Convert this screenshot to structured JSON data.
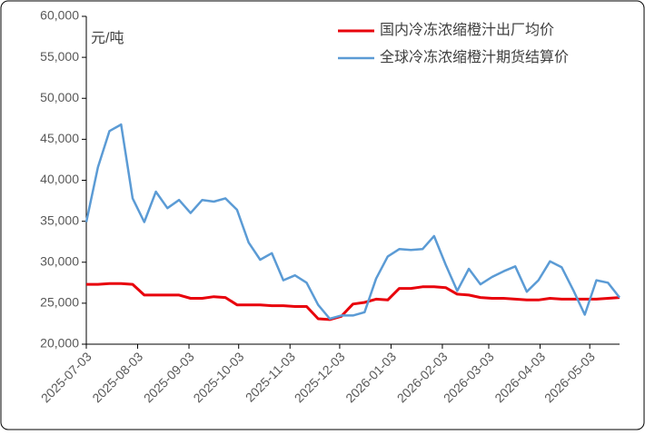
{
  "chart_data": {
    "type": "line",
    "y_label": "元/吨",
    "x": [
      "2025-07-03",
      "2025-07-10",
      "2025-07-17",
      "2025-07-24",
      "2025-07-31",
      "2025-08-07",
      "2025-08-14",
      "2025-08-21",
      "2025-08-28",
      "2025-09-04",
      "2025-09-11",
      "2025-09-18",
      "2025-09-25",
      "2025-10-02",
      "2025-10-09",
      "2025-10-16",
      "2025-10-23",
      "2025-10-30",
      "2025-11-06",
      "2025-11-13",
      "2025-11-20",
      "2025-11-27",
      "2025-12-04",
      "2025-12-11",
      "2025-12-18",
      "2025-12-25",
      "2026-01-01",
      "2026-01-08",
      "2026-01-15",
      "2026-01-22",
      "2026-01-29",
      "2026-02-05",
      "2026-02-12",
      "2026-02-19",
      "2026-02-26",
      "2026-03-05",
      "2026-03-12",
      "2026-03-19",
      "2026-03-26",
      "2026-04-02",
      "2026-04-09",
      "2026-04-16",
      "2026-04-23",
      "2026-04-30",
      "2026-05-07",
      "2026-05-14",
      "2026-05-21"
    ],
    "series": [
      {
        "name": "国内冷冻浓缩橙汁出厂均价",
        "color": "#e8000b",
        "width": 3,
        "values": [
          27300,
          27300,
          27400,
          27400,
          27300,
          26000,
          26000,
          26000,
          26000,
          25600,
          25600,
          25800,
          25700,
          24800,
          24800,
          24800,
          24700,
          24700,
          24600,
          24600,
          23100,
          23000,
          23400,
          24900,
          25100,
          25500,
          25400,
          26800,
          26800,
          27000,
          27000,
          26900,
          26100,
          26000,
          25700,
          25600,
          25600,
          25500,
          25400,
          25400,
          25600,
          25500,
          25500,
          25500,
          25500,
          25600,
          25700
        ]
      },
      {
        "name": "全球冷冻浓缩橙汁期货结算价",
        "color": "#5b9bd5",
        "width": 2.5,
        "values": [
          34900,
          41600,
          46000,
          46800,
          37800,
          34900,
          38600,
          36600,
          37600,
          36000,
          37600,
          37400,
          37800,
          36400,
          32400,
          30300,
          31100,
          27800,
          28400,
          27500,
          24800,
          23100,
          23500,
          23500,
          23900,
          28000,
          30700,
          31600,
          31500,
          31600,
          33200,
          29700,
          26500,
          29200,
          27300,
          28200,
          28900,
          29500,
          26400,
          27800,
          30100,
          29400,
          26600,
          23600,
          27800,
          27500,
          25700
        ]
      }
    ],
    "xlim": [
      "2025-07-03",
      "2026-05-21"
    ],
    "xticks": [
      "2025-07-03",
      "2025-08-03",
      "2025-09-03",
      "2025-10-03",
      "2025-11-03",
      "2025-12-03",
      "2026-01-03",
      "2026-02-03",
      "2026-03-03",
      "2026-04-03",
      "2026-05-03"
    ],
    "ylim": [
      20000,
      60000
    ],
    "yticks": [
      {
        "value": 20000,
        "label": "20,000"
      },
      {
        "value": 25000,
        "label": "25,000"
      },
      {
        "value": 30000,
        "label": "30,000"
      },
      {
        "value": 35000,
        "label": "35,000"
      },
      {
        "value": 40000,
        "label": "40,000"
      },
      {
        "value": 45000,
        "label": "45,000"
      },
      {
        "value": 50000,
        "label": "50,000"
      },
      {
        "value": 55000,
        "label": "55,000"
      },
      {
        "value": 60000,
        "label": "60,000"
      }
    ],
    "grid": false,
    "legend": "top-right"
  }
}
